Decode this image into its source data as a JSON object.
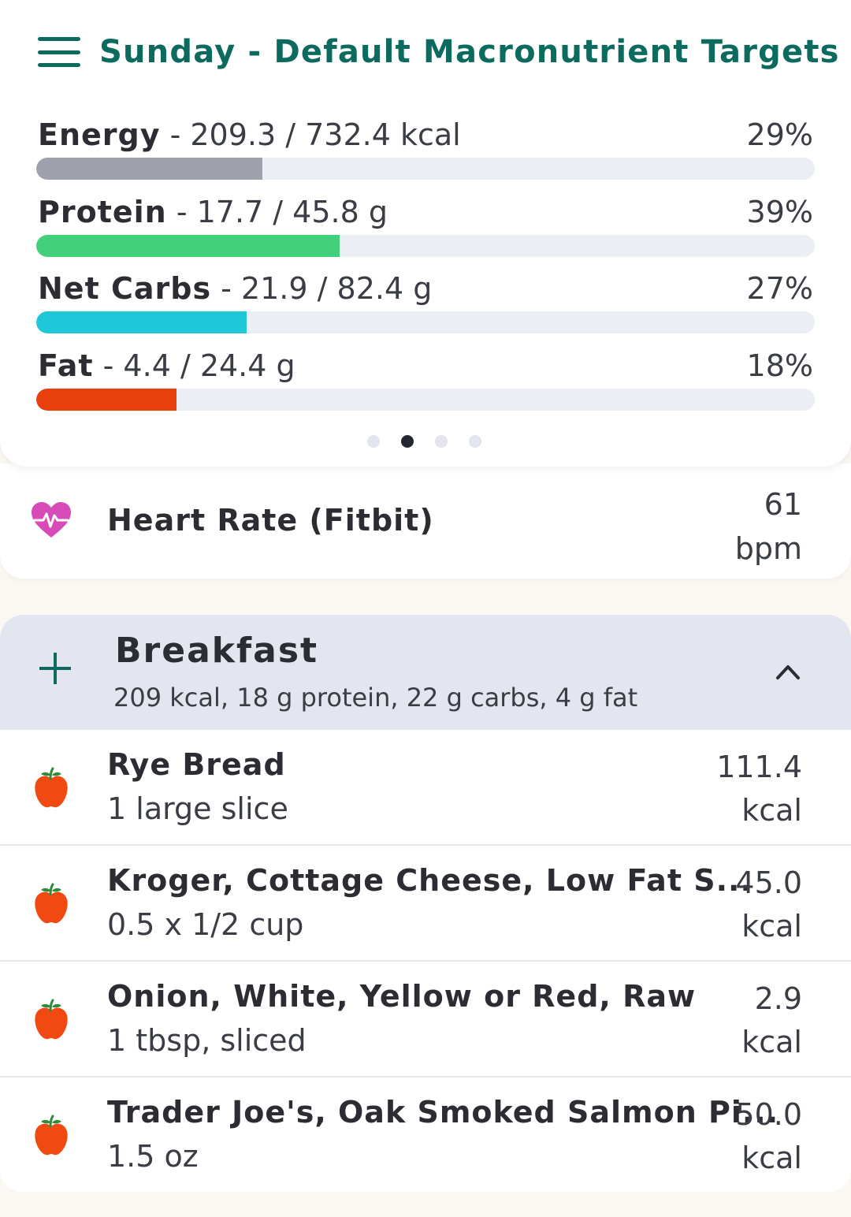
{
  "header": {
    "title": "Sunday - Default Macronutrient Targets"
  },
  "macros": [
    {
      "label": "Energy",
      "detail": "- 209.3 / 732.4 kcal",
      "percent_text": "29%",
      "progress": 0.29,
      "color": "#9fa1ad"
    },
    {
      "label": "Protein",
      "detail": "- 17.7 / 45.8 g",
      "percent_text": "39%",
      "progress": 0.39,
      "color": "#43d07b"
    },
    {
      "label": "Net Carbs",
      "detail": "- 21.9 / 82.4 g",
      "percent_text": "27%",
      "progress": 0.27,
      "color": "#1ec8d8"
    },
    {
      "label": "Fat",
      "detail": "- 4.4 / 24.4 g",
      "percent_text": "18%",
      "progress": 0.18,
      "color": "#e8400c"
    }
  ],
  "pager": {
    "count": 4,
    "active_index": 1
  },
  "heart_rate": {
    "label": "Heart Rate (Fitbit)",
    "value": "61",
    "unit": "bpm",
    "icon": "heart-pulse-icon",
    "color": "#d64bb8"
  },
  "meal": {
    "title": "Breakfast",
    "summary": "209 kcal, 18 g protein, 22 g carbs, 4 g fat",
    "items": [
      {
        "name": "Rye Bread",
        "serving": "1 large slice",
        "kcal": "111.4",
        "unit": "kcal"
      },
      {
        "name": "Kroger, Cottage Cheese, Low Fat S...",
        "serving": "0.5 x 1/2 cup",
        "kcal": "45.0",
        "unit": "kcal"
      },
      {
        "name": "Onion, White, Yellow or Red, Raw",
        "serving": "1 tbsp, sliced",
        "kcal": "2.9",
        "unit": "kcal"
      },
      {
        "name": "Trader Joe's, Oak Smoked Salmon Pi...",
        "serving": "1.5 oz",
        "kcal": "50.0",
        "unit": "kcal"
      }
    ]
  },
  "colors": {
    "accent": "#0c6b5e",
    "apple": "#f04a12",
    "leaf": "#2e8b3a"
  }
}
